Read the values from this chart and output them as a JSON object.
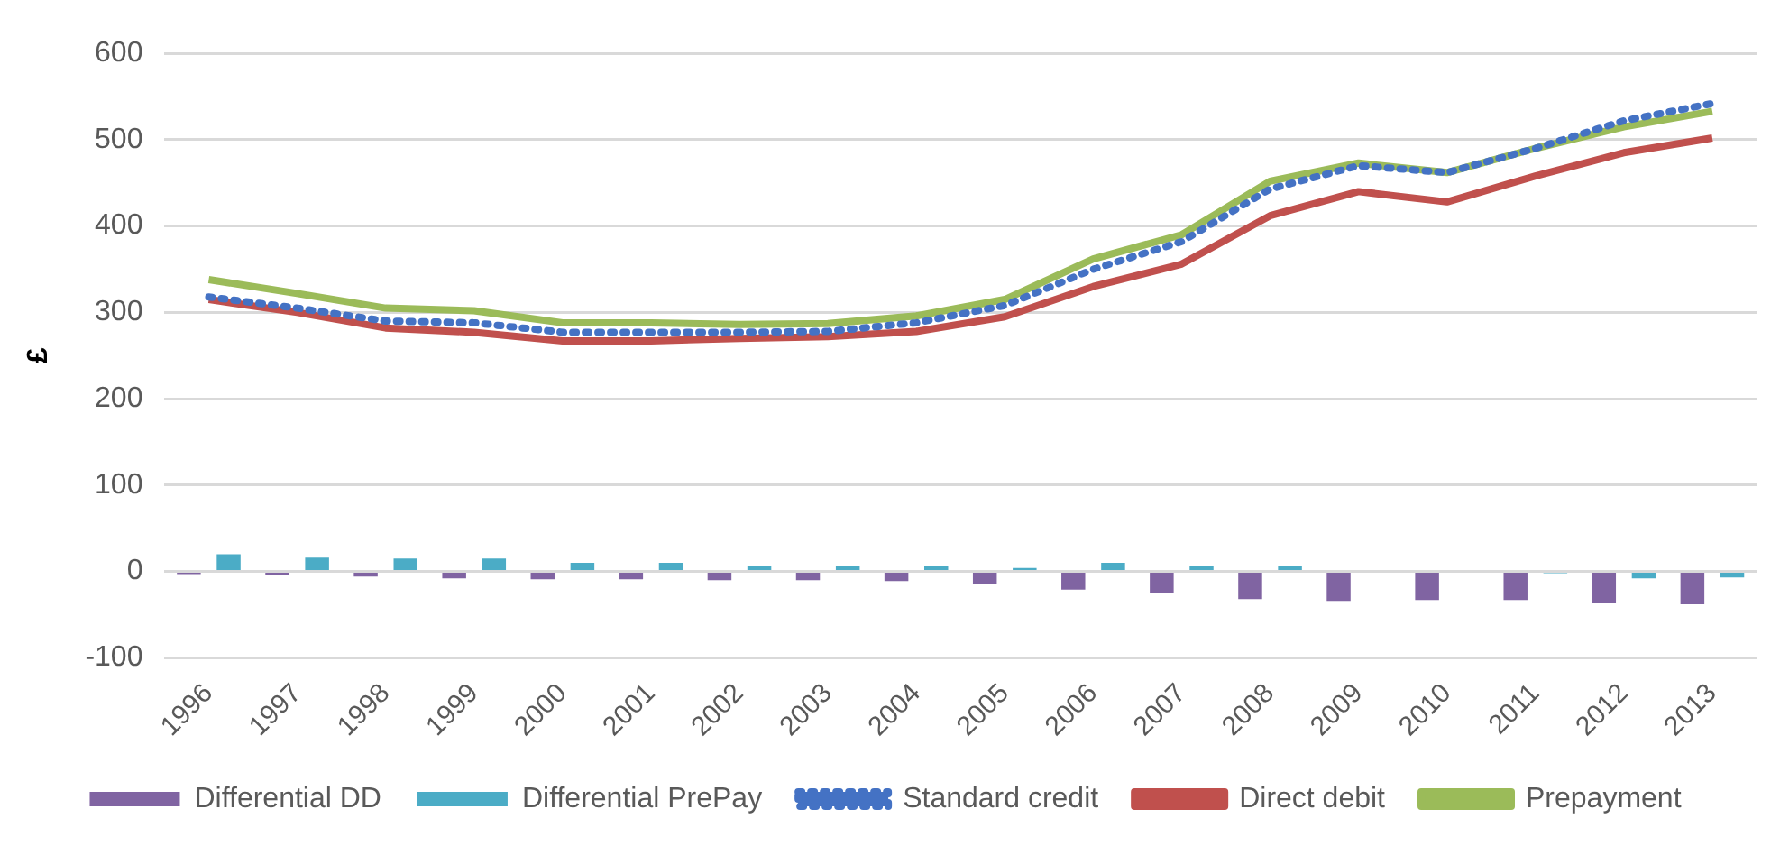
{
  "chart_data": {
    "type": "line",
    "ylabel": "£",
    "categories": [
      "1996",
      "1997",
      "1998",
      "1999",
      "2000",
      "2001",
      "2002",
      "2003",
      "2004",
      "2005",
      "2006",
      "2007",
      "2008",
      "2009",
      "2010",
      "2011",
      "2012",
      "2013"
    ],
    "series": [
      {
        "name": "Differential DD",
        "type": "bar",
        "color": "#8064a2",
        "values": [
          -3,
          -4,
          -6,
          -8,
          -9,
          -9,
          -10,
          -10,
          -11,
          -14,
          -21,
          -25,
          -32,
          -34,
          -33,
          -33,
          -37,
          -38
        ]
      },
      {
        "name": "Differential PrePay",
        "type": "bar",
        "color": "#4bacc6",
        "values": [
          20,
          16,
          15,
          15,
          10,
          10,
          6,
          6,
          6,
          4,
          10,
          6,
          6,
          0,
          0,
          -2,
          -8,
          -7
        ]
      },
      {
        "name": "Standard credit",
        "color": "#4472c4",
        "line_style": "dotted",
        "values": [
          318,
          305,
          290,
          288,
          277,
          277,
          277,
          278,
          288,
          308,
          350,
          382,
          443,
          470,
          462,
          490,
          522,
          542
        ]
      },
      {
        "name": "Direct debit",
        "color": "#c0504d",
        "line_style": "solid",
        "values": [
          315,
          300,
          282,
          277,
          267,
          267,
          270,
          272,
          278,
          295,
          330,
          356,
          412,
          440,
          428,
          458,
          485,
          502
        ]
      },
      {
        "name": "Prepayment",
        "color": "#9bbb59",
        "line_style": "solid",
        "values": [
          338,
          322,
          305,
          302,
          288,
          288,
          286,
          287,
          296,
          315,
          362,
          390,
          452,
          473,
          462,
          490,
          515,
          533
        ]
      }
    ],
    "ylim": [
      -100,
      600
    ],
    "yticks": [
      -100,
      0,
      100,
      200,
      300,
      400,
      500,
      600
    ],
    "grid": "y",
    "legend": "bottom",
    "marker": "none"
  }
}
